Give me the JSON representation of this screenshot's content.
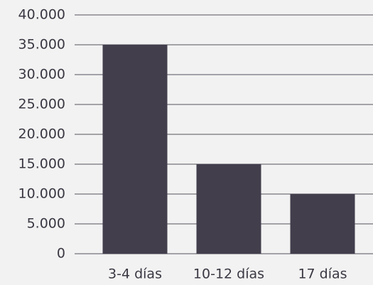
{
  "chart_data": {
    "type": "bar",
    "categories": [
      "3-4 días",
      "10-12 días",
      "17 días"
    ],
    "values": [
      35000,
      15000,
      10000
    ],
    "color": "#423e4c",
    "ylim": [
      0,
      40000
    ],
    "yticks": [
      0,
      {
        "value": 5000,
        "label": "5.000"
      },
      {
        "value": 10000,
        "label": "10.000"
      },
      {
        "value": 15000,
        "label": "15.000"
      },
      {
        "value": 20000,
        "label": "20.000"
      },
      {
        "value": 25000,
        "label": "25.000"
      },
      {
        "value": 30000,
        "label": "30.000"
      },
      {
        "value": 35000,
        "label": "35.000"
      },
      {
        "value": 40000,
        "label": "40.000"
      }
    ],
    "grid": true
  }
}
